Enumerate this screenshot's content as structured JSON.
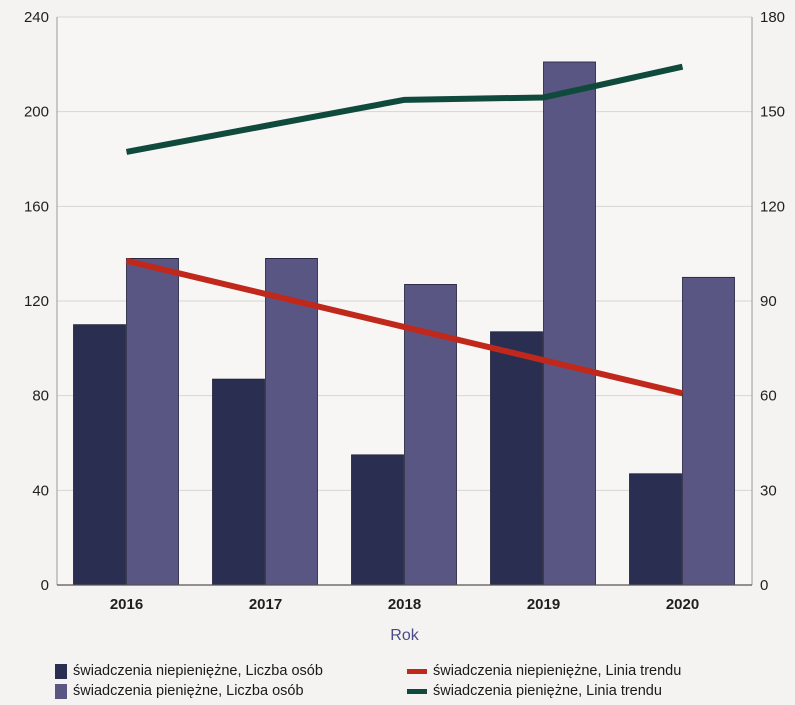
{
  "chart_data": {
    "type": "bar",
    "xlabel": "Rok",
    "categories": [
      "2016",
      "2017",
      "2018",
      "2019",
      "2020"
    ],
    "y_left": {
      "ticks": [
        "0",
        "40",
        "80",
        "120",
        "160",
        "200",
        "240"
      ],
      "range": [
        0,
        240
      ]
    },
    "y_right": {
      "ticks": [
        "0",
        "30",
        "60",
        "90",
        "120",
        "150",
        "180"
      ],
      "range": [
        0,
        180
      ]
    },
    "grid": true,
    "legend_position": "bottom",
    "series": [
      {
        "name": "świadczenia niepieniężne, Liczba osób",
        "kind": "bar",
        "color": "#2a2f52",
        "values": [
          110,
          87,
          55,
          107,
          47
        ]
      },
      {
        "name": "świadczenia pieniężne, Liczba osób",
        "kind": "bar",
        "color": "#5a5683",
        "values": [
          138,
          138,
          127,
          221,
          130
        ]
      },
      {
        "name": "świadczenia niepieniężne, Linia trendu",
        "kind": "line",
        "color": "#c0281c",
        "values": [
          137,
          123,
          109,
          95,
          81
        ]
      },
      {
        "name": "świadczenia pieniężne, Linia trendu",
        "kind": "line",
        "color": "#0f4a3c",
        "values": [
          183,
          194,
          205,
          206,
          219
        ]
      }
    ]
  }
}
